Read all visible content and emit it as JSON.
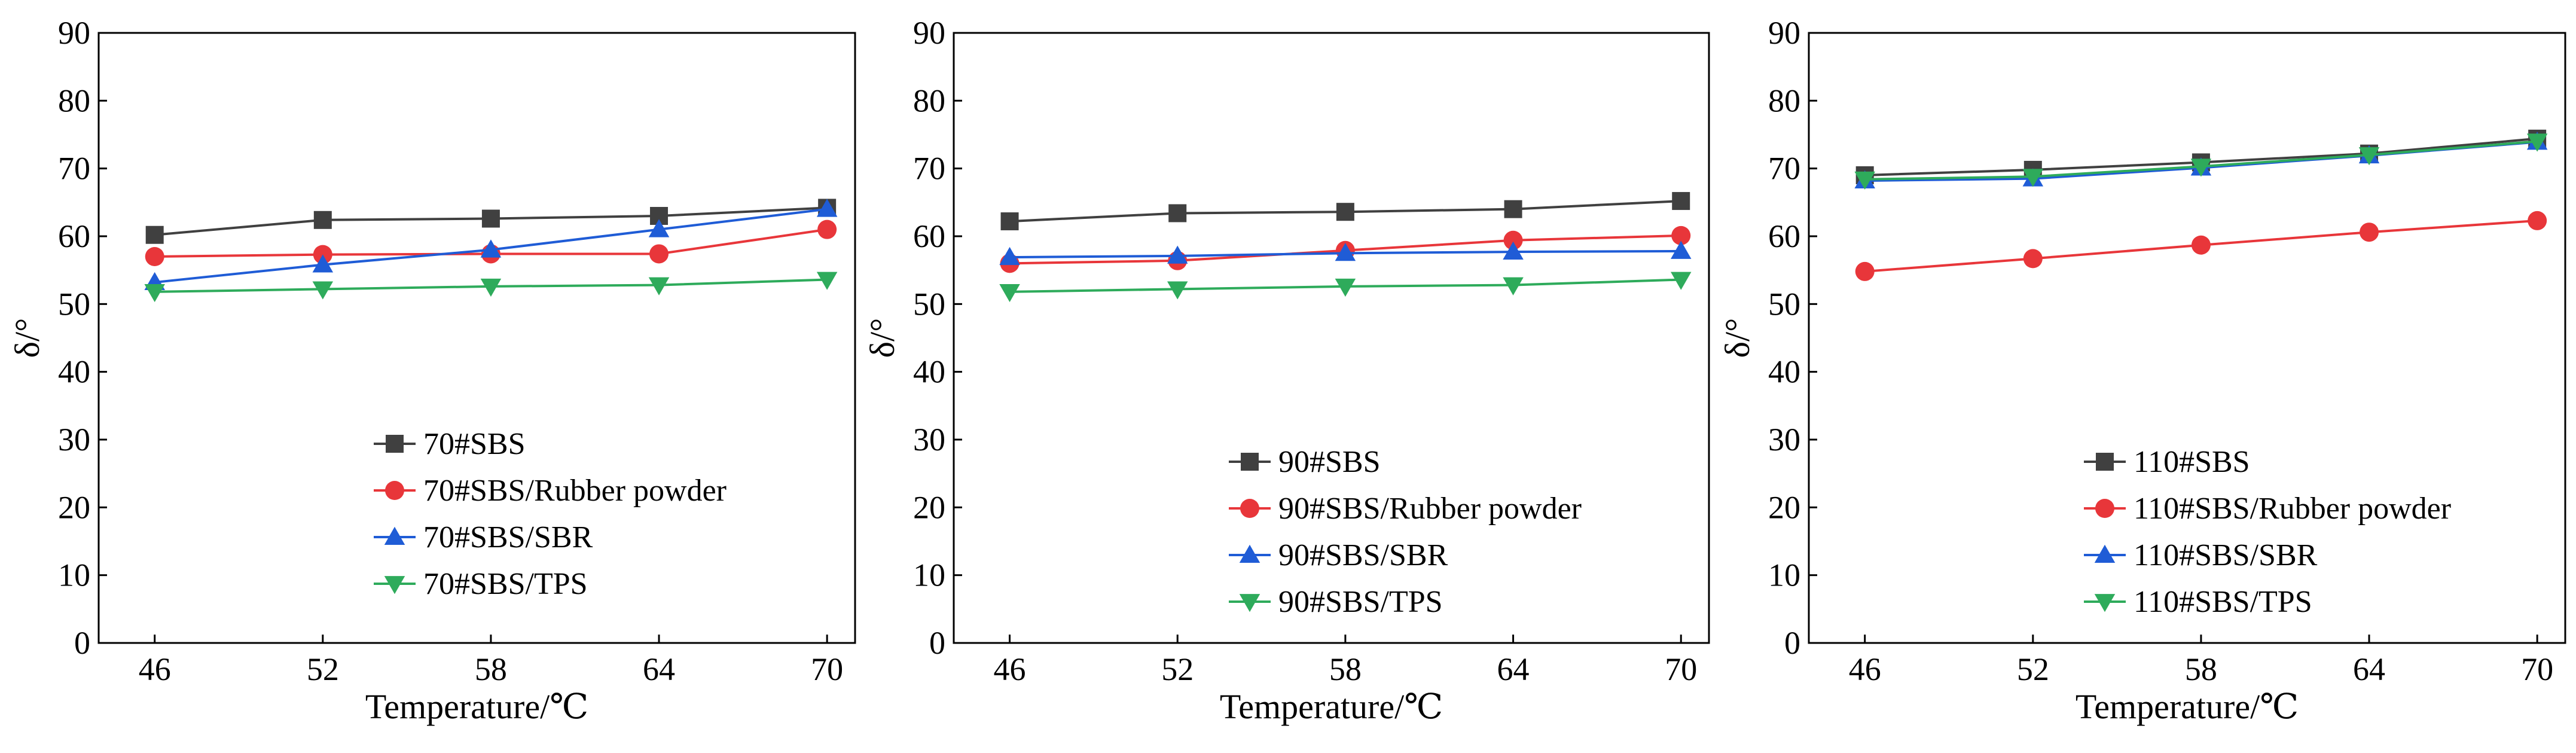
{
  "chart_data": [
    {
      "type": "line",
      "title": "",
      "xlabel": "Temperature/℃",
      "ylabel": "δ/°",
      "categories": [
        "46",
        "52",
        "58",
        "64",
        "70"
      ],
      "x": [
        46,
        52,
        58,
        64,
        70
      ],
      "xlim": [
        44,
        71
      ],
      "ylim": [
        0,
        90
      ],
      "yticks": [
        0,
        10,
        20,
        30,
        40,
        50,
        60,
        70,
        80,
        90
      ],
      "legend_position": "bottom-right",
      "grid": false,
      "series": [
        {
          "name": "70#SBS",
          "values": [
            60.2,
            62.4,
            62.6,
            63.0,
            64.2
          ],
          "color": "#404040",
          "marker": "square"
        },
        {
          "name": "70#SBS/Rubber powder",
          "values": [
            57.0,
            57.3,
            57.4,
            57.4,
            61.0
          ],
          "color": "#e8363a",
          "marker": "circle"
        },
        {
          "name": "70#SBS/SBR",
          "values": [
            53.2,
            55.8,
            58.0,
            61.0,
            64.0
          ],
          "color": "#1f5cd6",
          "marker": "triangle-up"
        },
        {
          "name": "70#SBS/TPS",
          "values": [
            51.8,
            52.2,
            52.6,
            52.8,
            53.6
          ],
          "color": "#2eab5b",
          "marker": "triangle-down"
        }
      ]
    },
    {
      "type": "line",
      "title": "",
      "xlabel": "Temperature/℃",
      "ylabel": "δ/°",
      "categories": [
        "46",
        "52",
        "58",
        "64",
        "70"
      ],
      "x": [
        46,
        52,
        58,
        64,
        70
      ],
      "xlim": [
        44,
        71
      ],
      "ylim": [
        0,
        90
      ],
      "yticks": [
        0,
        10,
        20,
        30,
        40,
        50,
        60,
        70,
        80,
        90
      ],
      "legend_position": "bottom-right",
      "grid": false,
      "series": [
        {
          "name": "90#SBS",
          "values": [
            62.2,
            63.4,
            63.6,
            64.0,
            65.2
          ],
          "color": "#404040",
          "marker": "square"
        },
        {
          "name": "90#SBS/Rubber powder",
          "values": [
            56.0,
            56.4,
            57.9,
            59.4,
            60.1
          ],
          "color": "#e8363a",
          "marker": "circle"
        },
        {
          "name": "90#SBS/SBR",
          "values": [
            56.9,
            57.1,
            57.5,
            57.7,
            57.8
          ],
          "color": "#1f5cd6",
          "marker": "triangle-up"
        },
        {
          "name": "90#SBS/TPS",
          "values": [
            51.8,
            52.2,
            52.6,
            52.8,
            53.6
          ],
          "color": "#2eab5b",
          "marker": "triangle-down"
        }
      ]
    },
    {
      "type": "line",
      "title": "",
      "xlabel": "Temperature/℃",
      "ylabel": "δ/°",
      "categories": [
        "46",
        "52",
        "58",
        "64",
        "70"
      ],
      "x": [
        46,
        52,
        58,
        64,
        70
      ],
      "xlim": [
        44,
        71
      ],
      "ylim": [
        0,
        90
      ],
      "yticks": [
        0,
        10,
        20,
        30,
        40,
        50,
        60,
        70,
        80,
        90
      ],
      "legend_position": "bottom-right",
      "grid": false,
      "series": [
        {
          "name": "110#SBS",
          "values": [
            69.0,
            69.8,
            70.9,
            72.2,
            74.4
          ],
          "color": "#404040",
          "marker": "square"
        },
        {
          "name": "110#SBS/Rubber powder",
          "values": [
            54.8,
            56.7,
            58.7,
            60.6,
            62.3
          ],
          "color": "#e8363a",
          "marker": "circle"
        },
        {
          "name": "110#SBS/SBR",
          "values": [
            68.2,
            68.5,
            70.1,
            71.9,
            73.9
          ],
          "color": "#1f5cd6",
          "marker": "triangle-up"
        },
        {
          "name": "110#SBS/TPS",
          "values": [
            68.4,
            68.8,
            70.3,
            72.0,
            74.0
          ],
          "color": "#2eab5b",
          "marker": "triangle-down"
        }
      ]
    }
  ]
}
